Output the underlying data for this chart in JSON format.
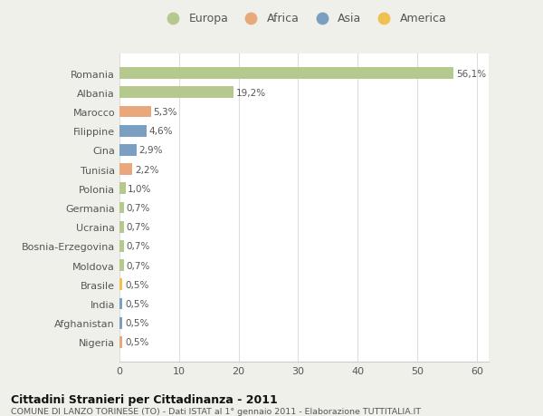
{
  "countries": [
    "Romania",
    "Albania",
    "Marocco",
    "Filippine",
    "Cina",
    "Tunisia",
    "Polonia",
    "Germania",
    "Ucraina",
    "Bosnia-Erzegovina",
    "Moldova",
    "Brasile",
    "India",
    "Afghanistan",
    "Nigeria"
  ],
  "values": [
    56.1,
    19.2,
    5.3,
    4.6,
    2.9,
    2.2,
    1.0,
    0.7,
    0.7,
    0.7,
    0.7,
    0.5,
    0.5,
    0.5,
    0.5
  ],
  "labels": [
    "56,1%",
    "19,2%",
    "5,3%",
    "4,6%",
    "2,9%",
    "2,2%",
    "1,0%",
    "0,7%",
    "0,7%",
    "0,7%",
    "0,7%",
    "0,5%",
    "0,5%",
    "0,5%",
    "0,5%"
  ],
  "colors": [
    "#b5c98e",
    "#b5c98e",
    "#e8a87c",
    "#7a9fc0",
    "#7a9fc0",
    "#e8a87c",
    "#b5c98e",
    "#b5c98e",
    "#b5c98e",
    "#b5c98e",
    "#b5c98e",
    "#f0c050",
    "#7a9fc0",
    "#7a9fc0",
    "#e8a87c"
  ],
  "legend_labels": [
    "Europa",
    "Africa",
    "Asia",
    "America"
  ],
  "legend_colors": [
    "#b5c98e",
    "#e8a87c",
    "#7a9fc0",
    "#f0c050"
  ],
  "xlim": [
    0,
    62
  ],
  "xticks": [
    0,
    10,
    20,
    30,
    40,
    50,
    60
  ],
  "title": "Cittadini Stranieri per Cittadinanza - 2011",
  "subtitle": "COMUNE DI LANZO TORINESE (TO) - Dati ISTAT al 1° gennaio 2011 - Elaborazione TUTTITALIA.IT",
  "bg_color": "#f0f0eb",
  "bar_bg_color": "#ffffff"
}
